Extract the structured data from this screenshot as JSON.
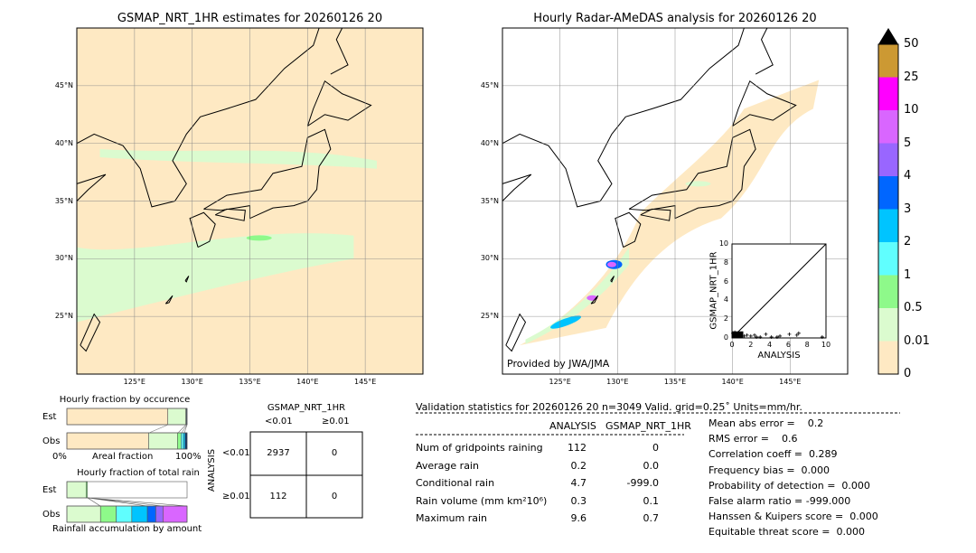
{
  "chart_data": [
    {
      "type": "map",
      "title": "GSMAP_NRT_1HR estimates for 20260126 20",
      "lon_range": [
        120,
        150
      ],
      "lat_range": [
        20,
        50
      ],
      "x_ticks": [
        "125°E",
        "130°E",
        "135°E",
        "140°E",
        "145°E"
      ],
      "y_ticks": [
        "45°N",
        "40°N",
        "35°N",
        "30°N",
        "25°N"
      ],
      "grid": true
    },
    {
      "type": "map",
      "title": "Hourly Radar-AMeDAS analysis for 20260126 20",
      "lon_range": [
        120,
        150
      ],
      "lat_range": [
        20,
        50
      ],
      "x_ticks": [
        "125°E",
        "130°E",
        "135°E",
        "140°E",
        "145°E"
      ],
      "y_ticks": [
        "45°N",
        "40°N",
        "35°N",
        "30°N",
        "25°N"
      ],
      "grid": true,
      "annotation": "Provided by JWA/JMA"
    },
    {
      "type": "scatter",
      "xlabel": "ANALYSIS",
      "ylabel": "GSMAP_NRT_1HR",
      "xlim": [
        0,
        10
      ],
      "ylim": [
        0,
        10
      ],
      "x_ticks": [
        "0",
        "2",
        "4",
        "6",
        "8",
        "10"
      ],
      "y_ticks": [
        "0",
        "2",
        "4",
        "6",
        "8",
        "10"
      ],
      "points": [
        [
          0.1,
          0.5
        ],
        [
          0.3,
          0.6
        ],
        [
          0.5,
          0.4
        ],
        [
          0.8,
          0.3
        ],
        [
          1.0,
          0.3
        ],
        [
          1.3,
          0.2
        ],
        [
          1.6,
          0.3
        ],
        [
          2.0,
          0.2
        ],
        [
          2.4,
          0.3
        ],
        [
          2.6,
          0.1
        ],
        [
          3.0,
          0.1
        ],
        [
          3.6,
          0.4
        ],
        [
          4.2,
          0.1
        ],
        [
          4.8,
          0.1
        ],
        [
          5.1,
          0.2
        ],
        [
          6.1,
          0.4
        ],
        [
          6.9,
          0.3
        ],
        [
          7.1,
          0.5
        ],
        [
          9.6,
          0.1
        ]
      ]
    },
    {
      "type": "colorbar",
      "labels": [
        "0",
        "0.01",
        "0.5",
        "1",
        "2",
        "3",
        "4",
        "5",
        "10",
        "25",
        "50"
      ],
      "colors": [
        "#fee9c3",
        "#dbfbcf",
        "#8ef98a",
        "#60fefe",
        "#00c4ff",
        "#0066ff",
        "#9966ff",
        "#d966ff",
        "#ff00ff",
        "#cc9933"
      ],
      "extend_color": "#000000"
    },
    {
      "type": "bar",
      "title": "Hourly fraction by occurence",
      "xlabel": "Areal fraction",
      "x_ticks": [
        "0%",
        "100%"
      ],
      "categories": [
        "Est",
        "Obs"
      ],
      "segments_percent": {
        "Est": [
          84,
          15,
          0.5,
          0.5
        ],
        "Obs": [
          68,
          24,
          3,
          2,
          1.5,
          1.5
        ]
      }
    },
    {
      "type": "bar",
      "title": "Hourly fraction of total rain",
      "xlabel": "Rainfall accumulation by amount",
      "categories": [
        "Est",
        "Obs"
      ],
      "segments_percent": {
        "Est": [
          16,
          1
        ],
        "Obs": [
          28,
          13,
          13,
          13,
          7,
          6,
          20
        ]
      }
    }
  ],
  "contingency": {
    "title": "GSMAP_NRT_1HR",
    "col_labels": [
      "<0.01",
      "≥0.01"
    ],
    "row_axis": "ANALYSIS",
    "row_labels": [
      "<0.01",
      "≥0.01"
    ],
    "cells": [
      [
        "2937",
        "0"
      ],
      [
        "112",
        "0"
      ]
    ]
  },
  "stats": {
    "header": "Validation statistics for 20260126 20  n=3049 Valid. grid=0.25˚ Units=mm/hr.",
    "col_analysis": "ANALYSIS",
    "col_gsmap": "GSMAP_NRT_1HR",
    "rows": [
      {
        "label": "Num of gridpoints raining",
        "a": "112",
        "g": "0"
      },
      {
        "label": "Average rain",
        "a": "0.2",
        "g": "0.0"
      },
      {
        "label": "Conditional rain",
        "a": "4.7",
        "g": "-999.0"
      },
      {
        "label": "Rain volume (mm km²10⁶)",
        "a": "0.3",
        "g": "0.1"
      },
      {
        "label": "Maximum rain",
        "a": "9.6",
        "g": "0.7"
      }
    ],
    "scores": [
      "Mean abs error =    0.2",
      "RMS error =    0.6",
      "Correlation coeff =  0.289",
      "Frequency bias =  0.000",
      "Probability of detection =  0.000",
      "False alarm ratio = -999.000",
      "Hanssen & Kuipers score =  0.000",
      "Equitable threat score =  0.000"
    ]
  }
}
